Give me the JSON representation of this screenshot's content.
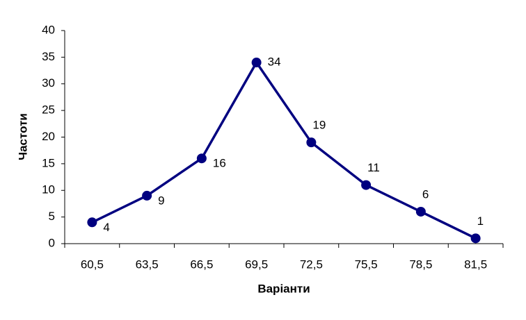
{
  "chart_data": {
    "type": "line",
    "x_label": "Варіанти",
    "y_label": "Частоти",
    "categories": [
      "60,5",
      "63,5",
      "66,5",
      "69,5",
      "72,5",
      "75,5",
      "78,5",
      "81,5"
    ],
    "values": [
      4,
      9,
      16,
      34,
      19,
      11,
      6,
      1
    ],
    "color": "#000080",
    "ylim": [
      0,
      40
    ],
    "yticks": [
      0,
      5,
      10,
      15,
      20,
      25,
      30,
      35,
      40
    ],
    "grid": false
  }
}
